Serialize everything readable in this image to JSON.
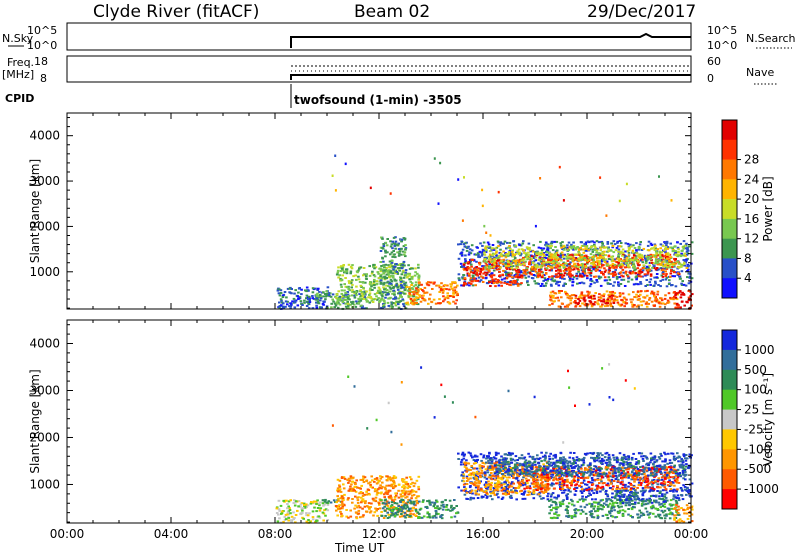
{
  "header": {
    "station": "Clyde River (fitACF)",
    "beam": "Beam 02",
    "date": "29/Dec/2017"
  },
  "strips": {
    "nsky_label": "N.Sky",
    "nsky_ticks": [
      "10^5",
      "10^0"
    ],
    "nsearch_label": "N.Search",
    "nsearch_ticks": [
      "10^5",
      "10^0"
    ],
    "freq_label": [
      "Freq.",
      "[MHz]"
    ],
    "freq_ticks": [
      "18",
      "8"
    ],
    "nave_label": "Nave",
    "nave_ticks": [
      "60",
      "0"
    ],
    "cpid_label": "CPID",
    "cpid_text": "twofsound (1-min) -3505"
  },
  "colors": {
    "power": [
      "#1010ff",
      "#2850c8",
      "#3c9650",
      "#78c850",
      "#c8dc28",
      "#ffb400",
      "#ff7800",
      "#ff3200",
      "#e10000"
    ],
    "velocity": [
      "#ff0000",
      "#ff5a00",
      "#ff9600",
      "#ffc800",
      "#c8c8c8",
      "#50c828",
      "#2e8b57",
      "#326e9b",
      "#1428dc"
    ]
  },
  "chart_data": [
    {
      "type": "heatmap",
      "title": "Power",
      "ylabel": "Slant Range [km]",
      "xlabel": "Time UT",
      "x_ticks": [
        "00:00",
        "04:00",
        "08:00",
        "12:00",
        "16:00",
        "20:00",
        "00:00"
      ],
      "x_tick_hours": [
        0,
        4,
        8,
        12,
        16,
        20,
        24
      ],
      "xlim_hours": [
        0,
        24
      ],
      "ylim": [
        180,
        4500
      ],
      "y_ticks": [
        1000,
        2000,
        3000,
        4000
      ],
      "colorbar_label": "Power [dB]",
      "colorbar_ticks": [
        "4",
        "8",
        "12",
        "16",
        "20",
        "24",
        "28"
      ],
      "regions": [
        {
          "t": [
            8.0,
            10.0
          ],
          "r": [
            200,
            700
          ],
          "c": 1
        },
        {
          "t": [
            9.5,
            11.5
          ],
          "r": [
            200,
            600
          ],
          "c": 2
        },
        {
          "t": [
            10.3,
            13.5
          ],
          "r": [
            300,
            1200
          ],
          "c": 3
        },
        {
          "t": [
            12.0,
            13.0
          ],
          "r": [
            200,
            1800
          ],
          "c": 2
        },
        {
          "t": [
            13.0,
            15.0
          ],
          "r": [
            300,
            800
          ],
          "c": 6
        },
        {
          "t": [
            15.0,
            24.0
          ],
          "r": [
            700,
            1700
          ],
          "c": 1
        },
        {
          "t": [
            15.2,
            17.5
          ],
          "r": [
            700,
            1300
          ],
          "c": 7
        },
        {
          "t": [
            17.5,
            23.5
          ],
          "r": [
            900,
            1400
          ],
          "c": 7
        },
        {
          "t": [
            16.0,
            23.8
          ],
          "r": [
            1100,
            1600
          ],
          "c": 4
        },
        {
          "t": [
            18.5,
            23.5
          ],
          "r": [
            250,
            600
          ],
          "c": 6
        },
        {
          "t": [
            19.5,
            21.0
          ],
          "r": [
            300,
            500
          ],
          "c": 8
        },
        {
          "t": [
            23.3,
            24.0
          ],
          "r": [
            200,
            600
          ],
          "c": 8
        }
      ]
    },
    {
      "type": "heatmap",
      "title": "Velocity",
      "ylabel": "Slant Range [km]",
      "xlabel": "Time UT",
      "x_ticks": [
        "00:00",
        "04:00",
        "08:00",
        "12:00",
        "16:00",
        "20:00",
        "00:00"
      ],
      "x_tick_hours": [
        0,
        4,
        8,
        12,
        16,
        20,
        24
      ],
      "xlim_hours": [
        0,
        24
      ],
      "ylim": [
        180,
        4500
      ],
      "y_ticks": [
        1000,
        2000,
        3000,
        4000
      ],
      "colorbar_label": "Velocity [m s^-1]",
      "colorbar_ticks": [
        "1000",
        "500",
        "100",
        "25",
        "-25",
        "-100",
        "-500",
        "-1000"
      ],
      "regions": [
        {
          "t": [
            8.0,
            10.0
          ],
          "r": [
            200,
            700
          ],
          "c": 4
        },
        {
          "t": [
            9.5,
            10.5
          ],
          "r": [
            600,
            700
          ],
          "c": 6
        },
        {
          "t": [
            10.3,
            13.5
          ],
          "r": [
            300,
            1200
          ],
          "c": 2
        },
        {
          "t": [
            12.0,
            15.0
          ],
          "r": [
            300,
            700
          ],
          "c": 6
        },
        {
          "t": [
            15.0,
            24.0
          ],
          "r": [
            700,
            1700
          ],
          "c": 8
        },
        {
          "t": [
            15.2,
            18.5
          ],
          "r": [
            800,
            1500
          ],
          "c": 2
        },
        {
          "t": [
            17.5,
            23.5
          ],
          "r": [
            900,
            1400
          ],
          "c": 1
        },
        {
          "t": [
            16.0,
            23.8
          ],
          "r": [
            1200,
            1600
          ],
          "c": 7
        },
        {
          "t": [
            18.5,
            23.5
          ],
          "r": [
            300,
            700
          ],
          "c": 6
        },
        {
          "t": [
            21.0,
            23.0
          ],
          "r": [
            600,
            900
          ],
          "c": 7
        },
        {
          "t": [
            23.3,
            24.0
          ],
          "r": [
            200,
            600
          ],
          "c": 2
        }
      ]
    }
  ]
}
